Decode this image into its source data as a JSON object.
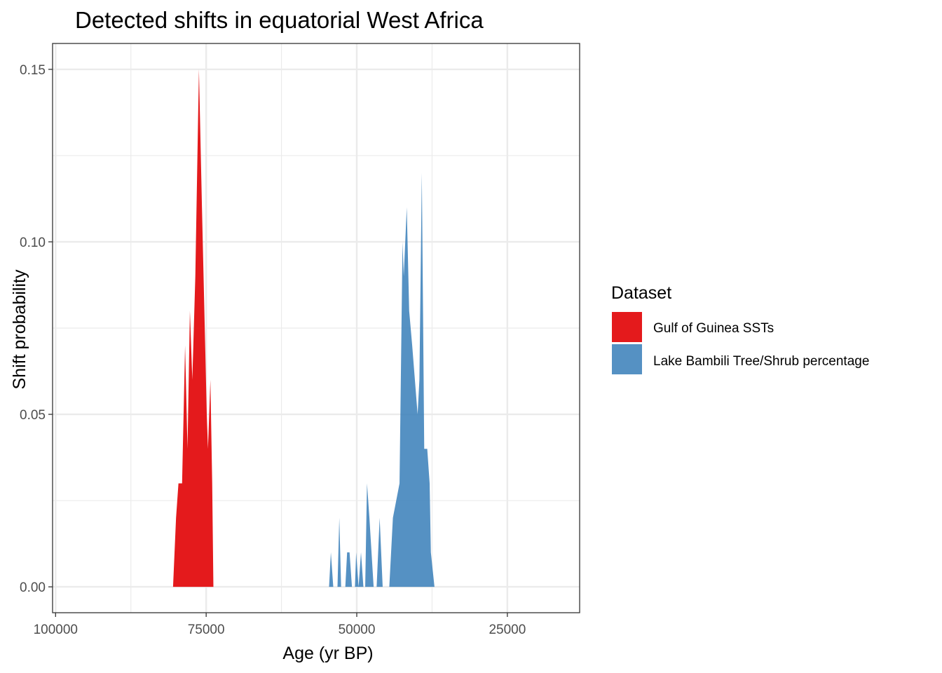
{
  "chart_data": {
    "type": "area",
    "title": "Detected shifts in equatorial West Africa",
    "xlabel": "Age (yr BP)",
    "ylabel": "Shift probability",
    "x_reversed": true,
    "xlim": [
      100500,
      13000
    ],
    "ylim": [
      -0.0075,
      0.1575
    ],
    "x_ticks": [
      {
        "value": 100000,
        "label": "100000"
      },
      {
        "value": 75000,
        "label": "75000"
      },
      {
        "value": 50000,
        "label": "50000"
      },
      {
        "value": 25000,
        "label": "25000"
      }
    ],
    "x_minor": [
      87500,
      62500,
      37500
    ],
    "y_ticks": [
      {
        "value": 0.0,
        "label": "0.00"
      },
      {
        "value": 0.05,
        "label": "0.05"
      },
      {
        "value": 0.1,
        "label": "0.10"
      },
      {
        "value": 0.15,
        "label": "0.15"
      }
    ],
    "y_minor": [
      0.025,
      0.075,
      0.125
    ],
    "grid": true,
    "legend_position": "right",
    "legend_title": "Dataset",
    "series": [
      {
        "name": "Gulf of Guinea SSTs",
        "color": "#E41A1C",
        "opacity": 1.0,
        "points": [
          [
            80500,
            0.0
          ],
          [
            80000,
            0.02
          ],
          [
            79600,
            0.03
          ],
          [
            79000,
            0.03
          ],
          [
            78500,
            0.07
          ],
          [
            78100,
            0.04
          ],
          [
            77700,
            0.08
          ],
          [
            77300,
            0.06
          ],
          [
            76800,
            0.09
          ],
          [
            76200,
            0.15
          ],
          [
            75700,
            0.11
          ],
          [
            75300,
            0.08
          ],
          [
            74900,
            0.05
          ],
          [
            74700,
            0.04
          ],
          [
            74300,
            0.06
          ],
          [
            74000,
            0.03
          ],
          [
            73800,
            0.0
          ]
        ]
      },
      {
        "name": "Lake Bambili Tree/Shrub percentage",
        "color": "#377EB8",
        "opacity": 0.85,
        "points": [
          [
            54600,
            0.0
          ],
          [
            54300,
            0.01
          ],
          [
            53900,
            0.0
          ],
          [
            53200,
            0.0
          ],
          [
            52900,
            0.02
          ],
          [
            52600,
            0.0
          ],
          [
            51900,
            0.0
          ],
          [
            51600,
            0.01
          ],
          [
            51200,
            0.01
          ],
          [
            50800,
            0.0
          ],
          [
            50300,
            0.0
          ],
          [
            50100,
            0.01
          ],
          [
            49700,
            0.0
          ],
          [
            49300,
            0.01
          ],
          [
            48900,
            0.0
          ],
          [
            48600,
            0.0
          ],
          [
            48300,
            0.03
          ],
          [
            47900,
            0.02
          ],
          [
            47200,
            0.0
          ],
          [
            46700,
            0.0
          ],
          [
            46200,
            0.02
          ],
          [
            45700,
            0.0
          ],
          [
            44600,
            0.0
          ],
          [
            44000,
            0.02
          ],
          [
            42900,
            0.03
          ],
          [
            42400,
            0.1
          ],
          [
            42200,
            0.09
          ],
          [
            41700,
            0.11
          ],
          [
            41300,
            0.08
          ],
          [
            40800,
            0.07
          ],
          [
            39900,
            0.05
          ],
          [
            39600,
            0.06
          ],
          [
            39200,
            0.12
          ],
          [
            38800,
            0.04
          ],
          [
            38300,
            0.04
          ],
          [
            37900,
            0.03
          ],
          [
            37700,
            0.01
          ],
          [
            37100,
            0.0
          ]
        ]
      }
    ]
  }
}
